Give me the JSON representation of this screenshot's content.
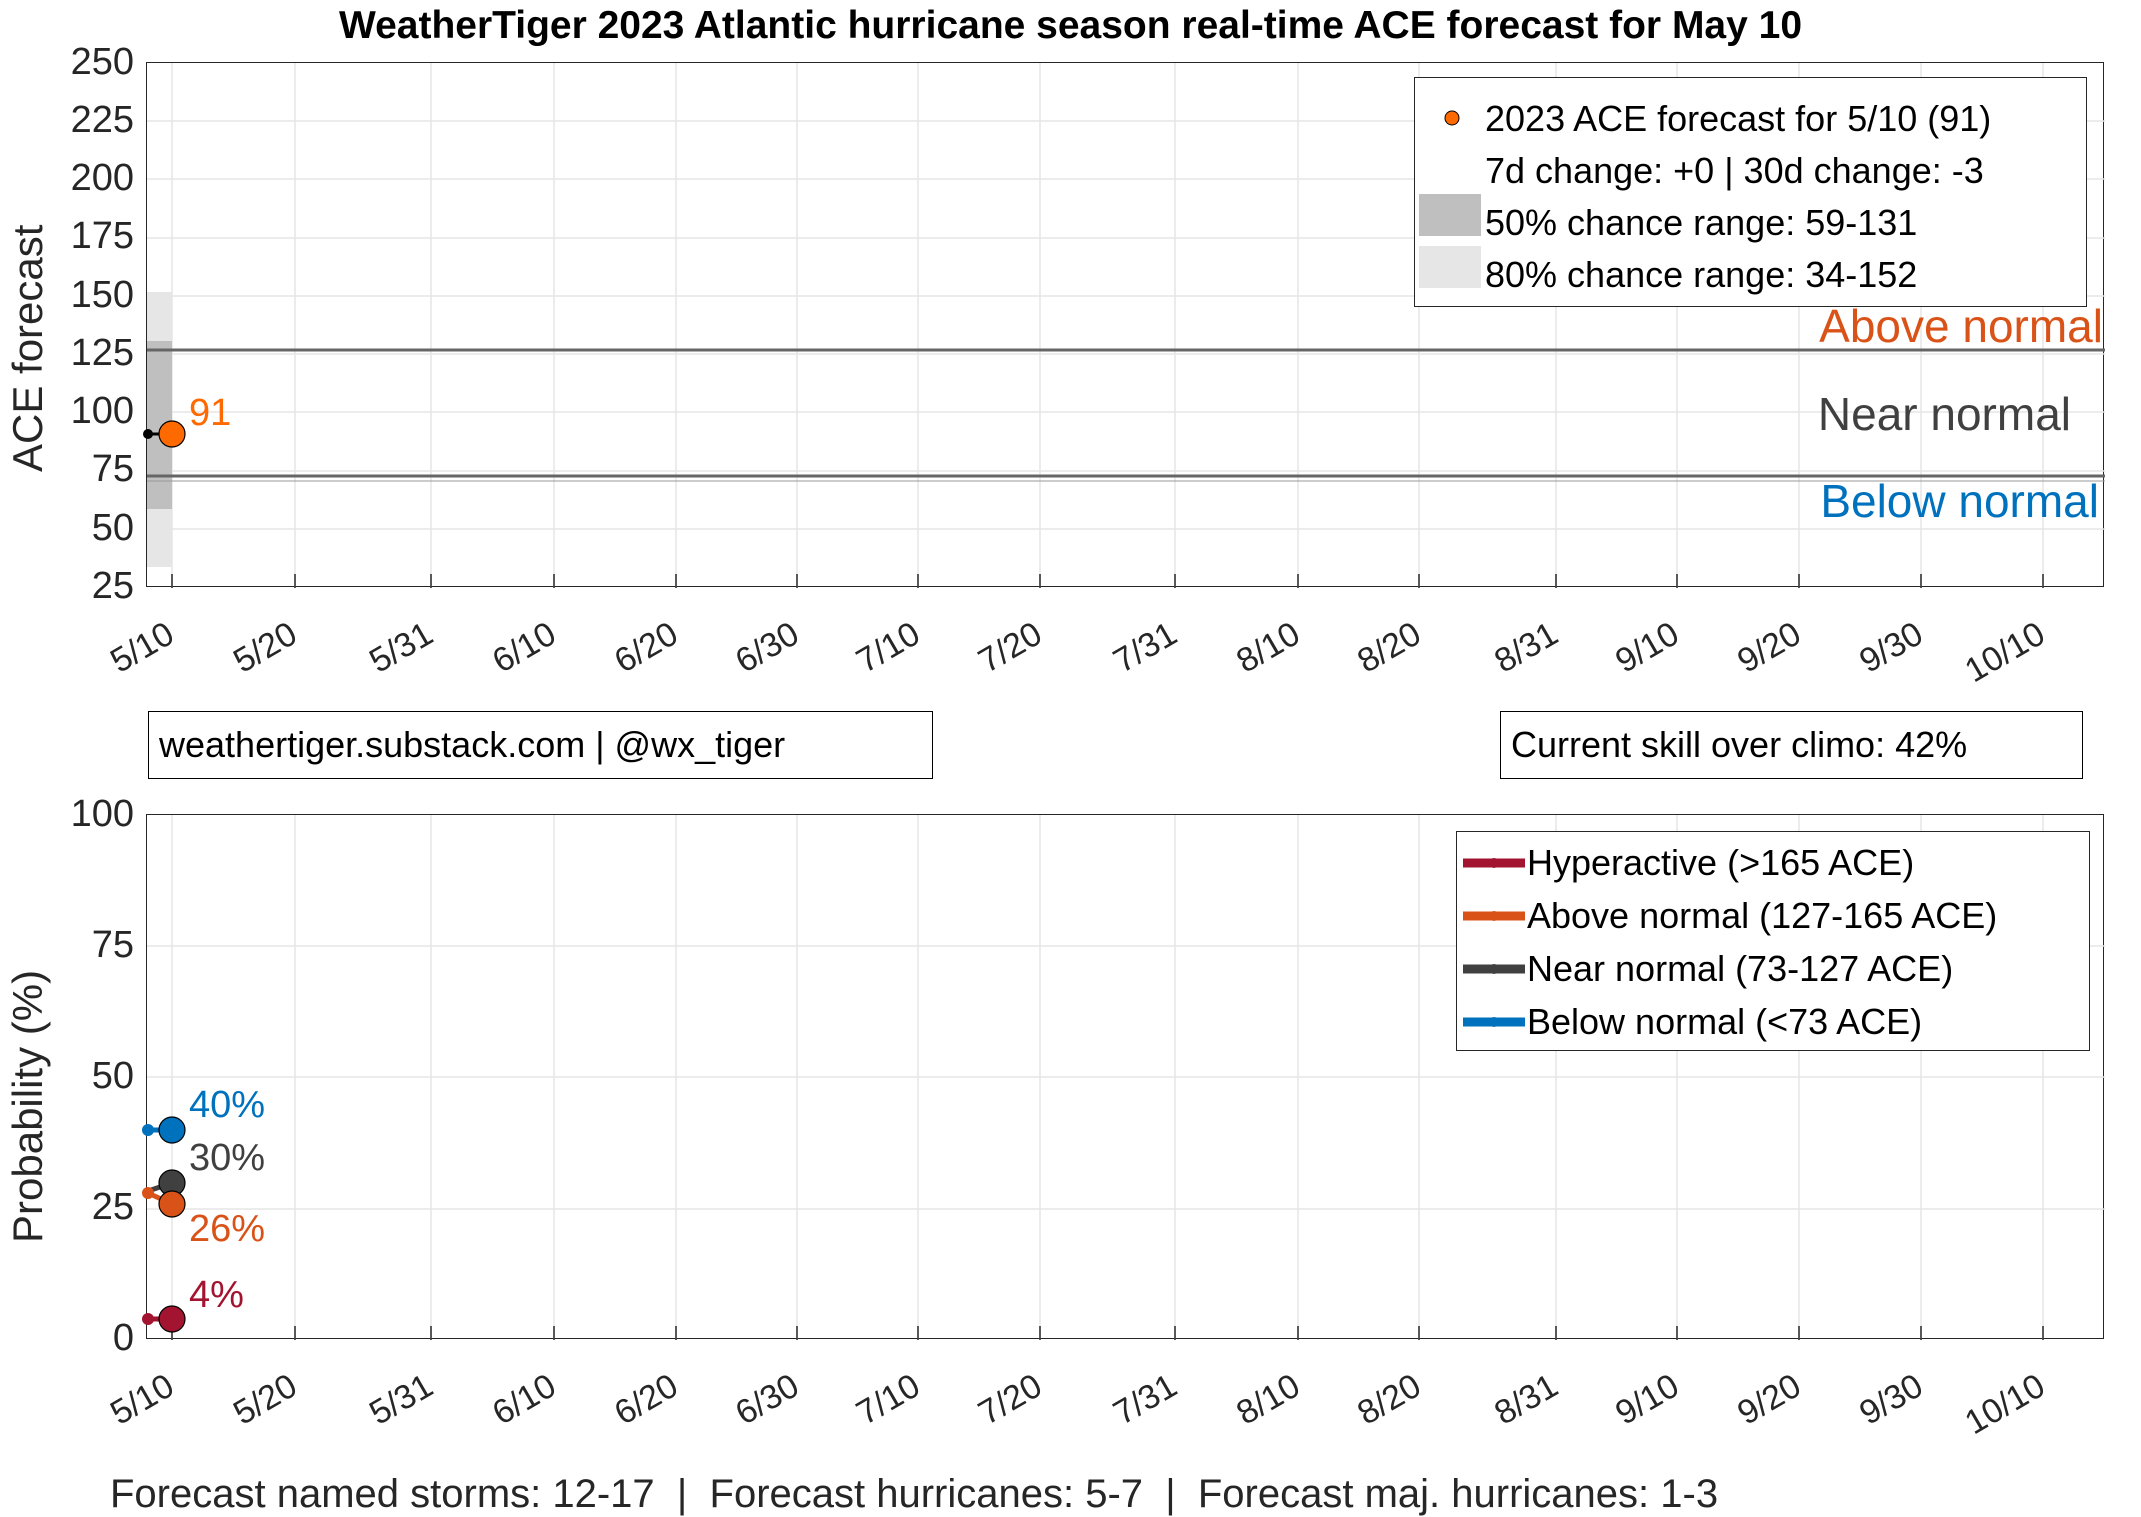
{
  "title": "WeatherTiger 2023 Atlantic hurricane season real-time ACE forecast for May 10",
  "colors": {
    "forecast_orange": "#FF6A00",
    "hyperactive": "#A2142F",
    "above_normal": "#D95319",
    "near_normal": "#404040",
    "below_normal": "#0072BD",
    "band50": "#BFBFBF",
    "band80": "#E6E6E6",
    "threshold_line": "#666666",
    "grid": "#E5E5E5"
  },
  "top_chart": {
    "ylabel": "ACE forecast",
    "yticks": [
      "250",
      "225",
      "200",
      "175",
      "150",
      "125",
      "100",
      "75",
      "50",
      "25"
    ],
    "xticks": [
      "5/10",
      "5/20",
      "5/31",
      "6/10",
      "6/20",
      "6/30",
      "7/10",
      "7/20",
      "7/31",
      "8/10",
      "8/20",
      "8/31",
      "9/10",
      "9/20",
      "9/30",
      "10/10"
    ],
    "point_label": "91",
    "zones": {
      "above": "Above normal",
      "near": "Near normal",
      "below": "Below normal"
    },
    "legend": [
      {
        "label": "2023 ACE forecast for 5/10 (91)"
      },
      {
        "label": "7d change: +0 | 30d change: -3"
      },
      {
        "label": "50% chance range: 59-131"
      },
      {
        "label": "80% chance range: 34-152"
      }
    ]
  },
  "attribution": "weathertiger.substack.com | @wx_tiger",
  "skill": "Current skill over climo: 42%",
  "bottom_chart": {
    "ylabel": "Probability (%)",
    "yticks": [
      "100",
      "75",
      "50",
      "25",
      "0"
    ],
    "xticks": [
      "5/10",
      "5/20",
      "5/31",
      "6/10",
      "6/20",
      "6/30",
      "7/10",
      "7/20",
      "7/31",
      "8/10",
      "8/20",
      "8/31",
      "9/10",
      "9/20",
      "9/30",
      "10/10"
    ],
    "labels": {
      "below": "40%",
      "near": "30%",
      "above": "26%",
      "hyper": "4%"
    },
    "legend": [
      {
        "label": "Hyperactive (>165 ACE)"
      },
      {
        "label": "Above normal (127-165 ACE)"
      },
      {
        "label": "Near normal (73-127 ACE)"
      },
      {
        "label": "Below normal (<73 ACE)"
      }
    ]
  },
  "footer": "Forecast named storms: 12-17  |  Forecast hurricanes: 5-7  |  Forecast maj. hurricanes: 1-3",
  "chart_data": [
    {
      "type": "line",
      "title": "WeatherTiger 2023 Atlantic hurricane season real-time ACE forecast for May 10",
      "xlabel": "",
      "ylabel": "ACE forecast",
      "ylim": [
        25,
        250
      ],
      "x": [
        "5/10"
      ],
      "categories": [
        "5/10",
        "5/20",
        "5/31",
        "6/10",
        "6/20",
        "6/30",
        "7/10",
        "7/20",
        "7/31",
        "8/10",
        "8/20",
        "8/31",
        "9/10",
        "9/20",
        "9/30",
        "10/10"
      ],
      "series": [
        {
          "name": "2023 ACE forecast",
          "values": [
            91
          ]
        },
        {
          "name": "50% chance range",
          "low": [
            59
          ],
          "high": [
            131
          ]
        },
        {
          "name": "80% chance range",
          "low": [
            34
          ],
          "high": [
            152
          ]
        }
      ],
      "thresholds": {
        "above_normal": 127,
        "below_normal": 73
      },
      "annotations": [
        "91",
        "Above normal",
        "Near normal",
        "Below normal",
        "7d change: +0 | 30d change: -3"
      ],
      "legend_position": "upper right",
      "grid": true
    },
    {
      "type": "line",
      "title": "",
      "xlabel": "",
      "ylabel": "Probability (%)",
      "ylim": [
        0,
        100
      ],
      "x": [
        "5/10"
      ],
      "categories": [
        "5/10",
        "5/20",
        "5/31",
        "6/10",
        "6/20",
        "6/30",
        "7/10",
        "7/20",
        "7/31",
        "8/10",
        "8/20",
        "8/31",
        "9/10",
        "9/20",
        "9/30",
        "10/10"
      ],
      "series": [
        {
          "name": "Hyperactive (>165 ACE)",
          "values": [
            4
          ]
        },
        {
          "name": "Above normal (127-165 ACE)",
          "values": [
            26
          ]
        },
        {
          "name": "Near normal (73-127 ACE)",
          "values": [
            30
          ]
        },
        {
          "name": "Below normal (<73 ACE)",
          "values": [
            40
          ]
        }
      ],
      "annotations": [
        "40%",
        "30%",
        "26%",
        "4%"
      ],
      "legend_position": "upper right",
      "grid": true
    }
  ]
}
